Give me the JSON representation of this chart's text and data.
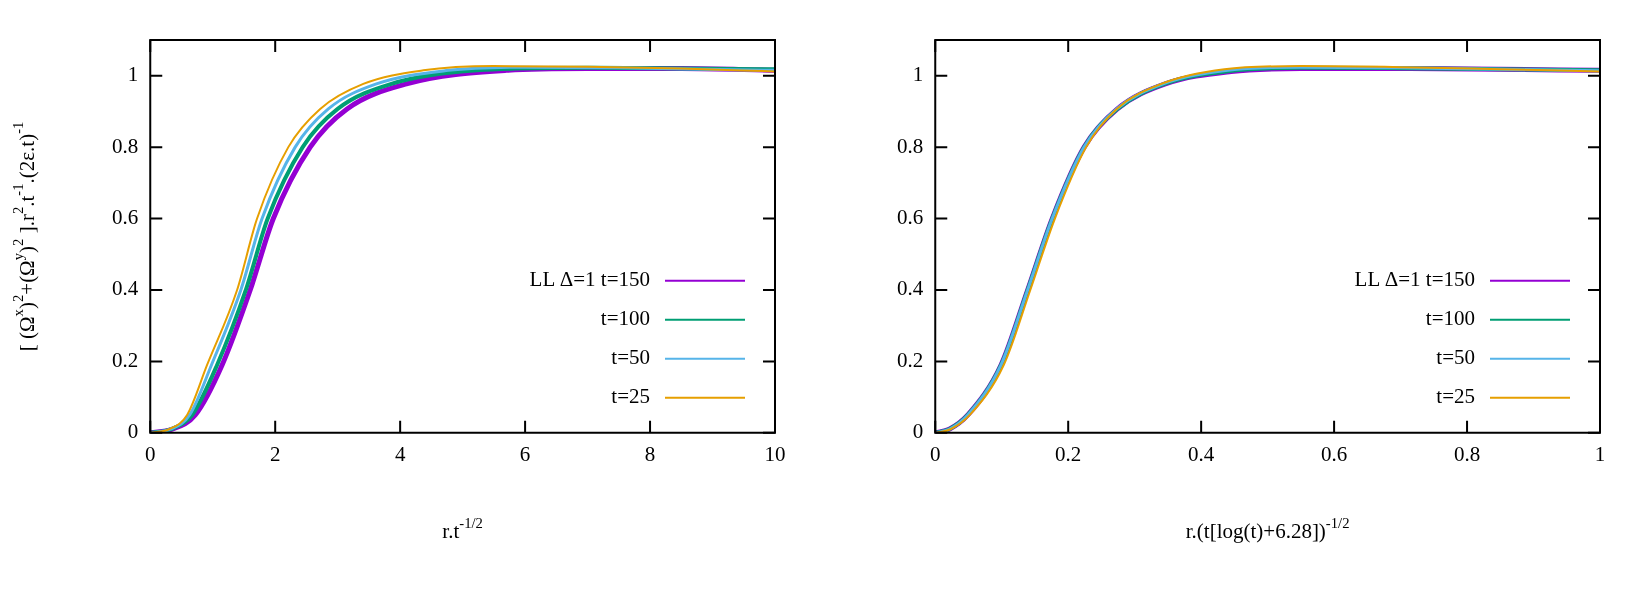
{
  "chart_data": [
    {
      "type": "line",
      "xlabel": "r.t$^{-1/2}$",
      "ylabel": "[ (Ω$^{x}$)$^{2}$+(Ω$^{y}$)$^{2}$ ].r$^{2}$.t$^{-1}$.(2ε.t)$^{-1}$",
      "xlim": [
        0,
        10
      ],
      "xticks": [
        0,
        2,
        4,
        6,
        8,
        10
      ],
      "ylim": [
        0,
        1.1
      ],
      "yticks": [
        0,
        0.2,
        0.4,
        0.6,
        0.8,
        1
      ],
      "grid": false,
      "legend": "bottom right",
      "marker": "none",
      "line_style": "solid",
      "series": [
        {
          "name": "LL Δ=1 t=150",
          "color": "#9400d3",
          "x": [
            0,
            0.35,
            0.72,
            1.15,
            1.6,
            1.97,
            2.56,
            3.15,
            4.1,
            5.7,
            7,
            8.5,
            10
          ],
          "values": [
            0,
            0.01,
            0.05,
            0.19,
            0.4,
            0.6,
            0.8,
            0.907,
            0.977,
            1.015,
            1.02,
            1.02,
            1.015
          ]
        },
        {
          "name": "t=100",
          "color": "#009e73",
          "x": [
            0,
            0.33,
            0.67,
            1.07,
            1.53,
            1.88,
            2.44,
            3.0,
            3.86,
            5.23,
            7,
            8.5,
            10
          ],
          "values": [
            0,
            0.01,
            0.05,
            0.19,
            0.4,
            0.6,
            0.8,
            0.907,
            0.977,
            1.015,
            1.022,
            1.02,
            1.018
          ]
        },
        {
          "name": "t=50",
          "color": "#56b4e9",
          "x": [
            0,
            0.32,
            0.63,
            0.98,
            1.45,
            1.79,
            2.32,
            2.85,
            3.62,
            4.77,
            6,
            7.5,
            10
          ],
          "values": [
            0,
            0.01,
            0.05,
            0.19,
            0.4,
            0.6,
            0.8,
            0.907,
            0.977,
            1.015,
            1.024,
            1.022,
            1.015
          ]
        },
        {
          "name": "t=25",
          "color": "#e69f00",
          "x": [
            0,
            0.3,
            0.59,
            0.91,
            1.39,
            1.71,
            2.21,
            2.72,
            3.41,
            4.37,
            5.5,
            7,
            8.5,
            10
          ],
          "values": [
            0,
            0.01,
            0.05,
            0.19,
            0.4,
            0.6,
            0.8,
            0.907,
            0.977,
            1.015,
            1.027,
            1.025,
            1.02,
            1.012
          ]
        }
      ]
    },
    {
      "type": "line",
      "xlabel": "r.(t[log(t)+6.28])$^{-1/2}$",
      "xlim": [
        0,
        1
      ],
      "xticks": [
        0,
        0.2,
        0.4,
        0.6,
        0.8,
        1
      ],
      "ylim": [
        0,
        1.1
      ],
      "yticks": [
        0,
        0.2,
        0.4,
        0.6,
        0.8,
        1
      ],
      "grid": false,
      "legend": "bottom right",
      "marker": "none",
      "line_style": "solid",
      "series": [
        {
          "name": "LL Δ=1 t=150",
          "color": "#9400d3",
          "x": [
            0,
            0.021,
            0.049,
            0.099,
            0.139,
            0.176,
            0.224,
            0.274,
            0.346,
            0.445,
            0.55,
            0.7,
            0.85,
            1
          ],
          "values": [
            0,
            0.01,
            0.05,
            0.19,
            0.4,
            0.6,
            0.8,
            0.907,
            0.977,
            1.012,
            1.02,
            1.02,
            1.018,
            1.015
          ]
        },
        {
          "name": "t=100",
          "color": "#009e73",
          "x": [
            0,
            0.021,
            0.049,
            0.099,
            0.139,
            0.176,
            0.224,
            0.274,
            0.345,
            0.443,
            0.55,
            0.7,
            0.85,
            1
          ],
          "values": [
            0,
            0.01,
            0.05,
            0.19,
            0.4,
            0.6,
            0.8,
            0.907,
            0.977,
            1.013,
            1.022,
            1.021,
            1.018,
            1.015
          ]
        },
        {
          "name": "t=50",
          "color": "#56b4e9",
          "x": [
            0,
            0.021,
            0.049,
            0.099,
            0.139,
            0.176,
            0.224,
            0.273,
            0.343,
            0.44,
            0.55,
            0.7,
            0.85,
            1
          ],
          "values": [
            0,
            0.01,
            0.05,
            0.19,
            0.4,
            0.6,
            0.8,
            0.907,
            0.977,
            1.015,
            1.024,
            1.022,
            1.018,
            1.014
          ]
        },
        {
          "name": "t=25",
          "color": "#e69f00",
          "x": [
            0,
            0.023,
            0.052,
            0.103,
            0.143,
            0.18,
            0.227,
            0.273,
            0.34,
            0.435,
            0.55,
            0.7,
            0.85,
            1
          ],
          "values": [
            0,
            0.01,
            0.05,
            0.19,
            0.4,
            0.6,
            0.8,
            0.907,
            0.977,
            1.018,
            1.027,
            1.024,
            1.018,
            1.012
          ]
        }
      ]
    }
  ]
}
